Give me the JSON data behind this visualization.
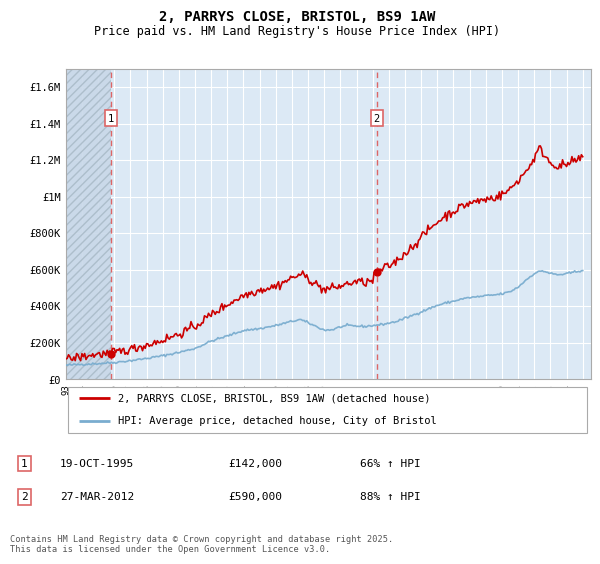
{
  "title": "2, PARRYS CLOSE, BRISTOL, BS9 1AW",
  "subtitle": "Price paid vs. HM Land Registry's House Price Index (HPI)",
  "ylim": [
    0,
    1700000
  ],
  "yticks": [
    0,
    200000,
    400000,
    600000,
    800000,
    1000000,
    1200000,
    1400000,
    1600000
  ],
  "ytick_labels": [
    "£0",
    "£200K",
    "£400K",
    "£600K",
    "£800K",
    "£1M",
    "£1.2M",
    "£1.4M",
    "£1.6M"
  ],
  "line1_color": "#cc0000",
  "line2_color": "#7aadcf",
  "marker_color": "#cc0000",
  "vline_color": "#dd6666",
  "plot_bg_color": "#dce9f5",
  "hatch_color": "#c0ccd8",
  "grid_color": "#ffffff",
  "legend_label1": "2, PARRYS CLOSE, BRISTOL, BS9 1AW (detached house)",
  "legend_label2": "HPI: Average price, detached house, City of Bristol",
  "transaction1_date": "19-OCT-1995",
  "transaction1_price": "£142,000",
  "transaction1_hpi": "66% ↑ HPI",
  "transaction2_date": "27-MAR-2012",
  "transaction2_price": "£590,000",
  "transaction2_hpi": "88% ↑ HPI",
  "footer": "Contains HM Land Registry data © Crown copyright and database right 2025.\nThis data is licensed under the Open Government Licence v3.0.",
  "sale1_x": 1995.8,
  "sale1_y": 142000,
  "sale2_x": 2012.25,
  "sale2_y": 590000,
  "vline1_x": 1995.8,
  "vline2_x": 2012.25,
  "xlim_left": 1993.0,
  "xlim_right": 2025.5
}
